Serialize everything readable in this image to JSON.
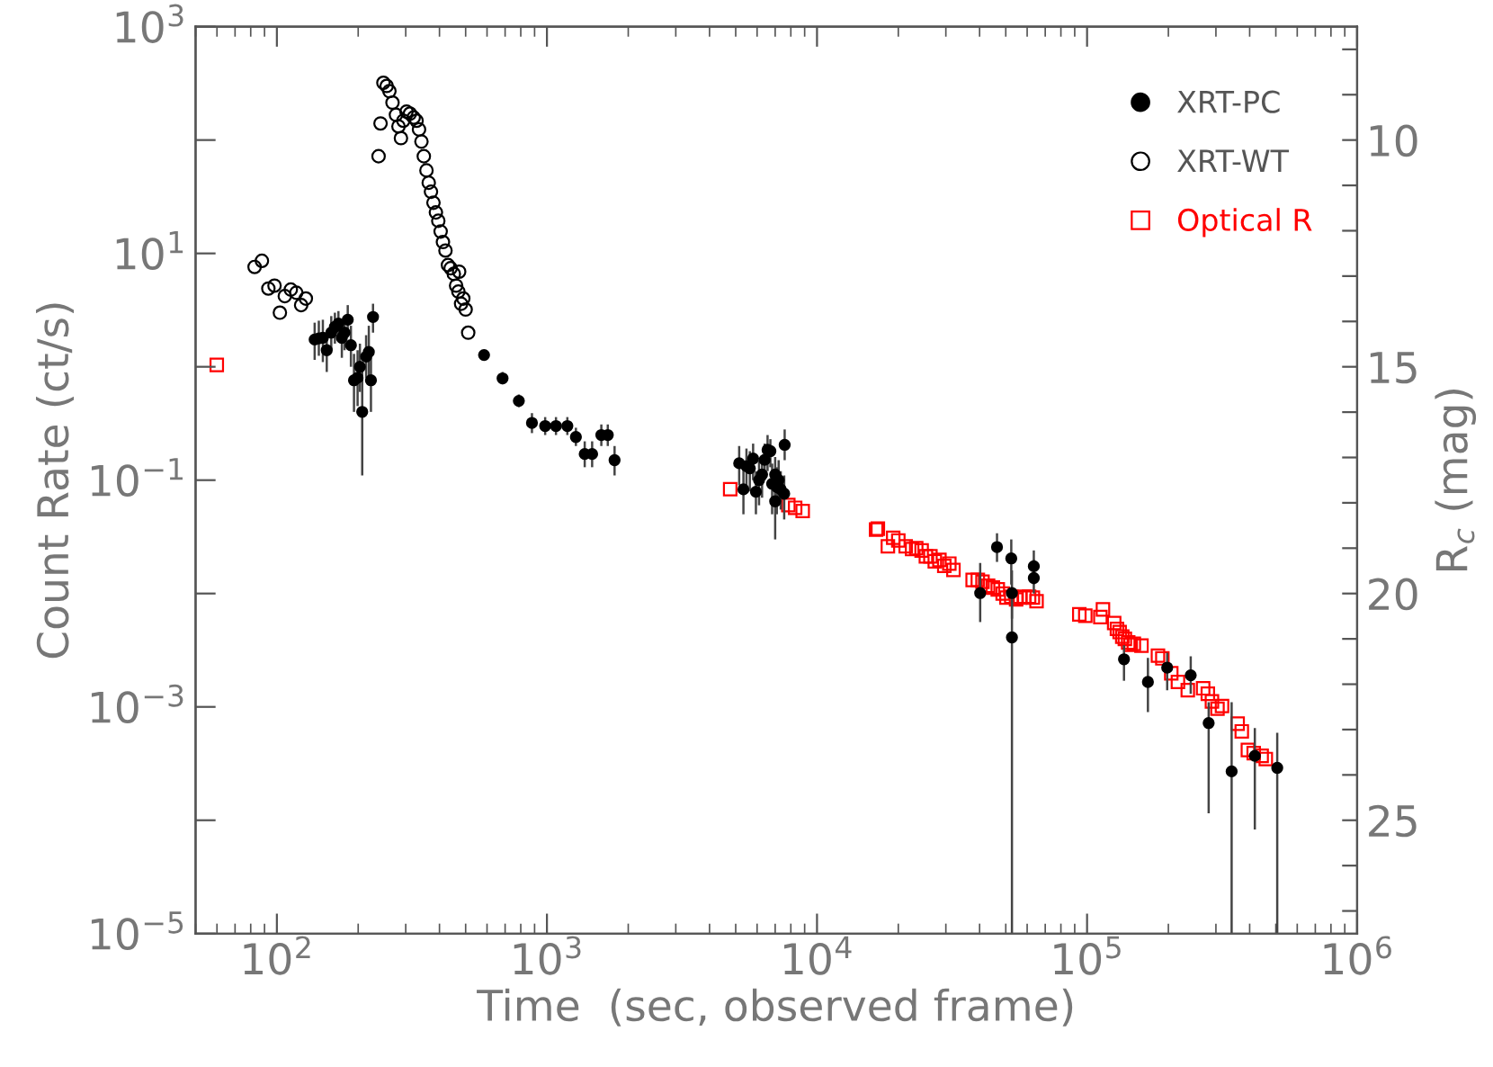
{
  "chart_data": {
    "type": "scatter",
    "xlabel": "Time  (sec, observed frame)",
    "ylabel": "Count Rate (ct/s)",
    "y2label": "R$_{c}$ (mag)",
    "log": "xy",
    "xlim": [
      50,
      1000000
    ],
    "ylim": [
      1e-05,
      1000
    ],
    "y2lim": [
      27.5,
      7.5
    ],
    "xticks": [
      {
        "value": 100,
        "label": "10$^{2}$"
      },
      {
        "value": 1000,
        "label": "10$^{3}$"
      },
      {
        "value": 10000,
        "label": "10$^{4}$"
      },
      {
        "value": 100000,
        "label": "10$^{5}$"
      },
      {
        "value": 1000000,
        "label": "10$^{6}$"
      }
    ],
    "yticks": [
      {
        "value": 1e-05,
        "label": "10$^{−5}$"
      },
      {
        "value": 0.0001,
        "label": null
      },
      {
        "value": 0.001,
        "label": "10$^{−3}$"
      },
      {
        "value": 0.01,
        "label": null
      },
      {
        "value": 0.1,
        "label": "10$^{−1}$"
      },
      {
        "value": 1,
        "label": null
      },
      {
        "value": 10,
        "label": "10$^{1}$"
      },
      {
        "value": 100,
        "label": null
      },
      {
        "value": 1000,
        "label": "10$^{3}$"
      }
    ],
    "y2ticks": [
      {
        "value": 8,
        "label": null
      },
      {
        "value": 9,
        "label": null
      },
      10,
      {
        "value": 11,
        "label": null
      },
      {
        "value": 12,
        "label": null
      },
      {
        "value": 13,
        "label": null
      },
      {
        "value": 14,
        "label": null
      },
      15,
      {
        "value": 16,
        "label": null
      },
      {
        "value": 17,
        "label": null
      },
      {
        "value": 18,
        "label": null
      },
      {
        "value": 19,
        "label": null
      },
      20,
      {
        "value": 21,
        "label": null
      },
      {
        "value": 22,
        "label": null
      },
      {
        "value": 23,
        "label": null
      },
      {
        "value": 24,
        "label": null
      },
      25,
      {
        "value": 26,
        "label": null
      },
      {
        "value": 27,
        "label": null
      }
    ],
    "grid": false,
    "legend": "top right",
    "series": [
      {
        "name": "XRT-PC",
        "color": "#000000",
        "marker": "circle",
        "x": [
          138,
          143,
          148,
          153,
          159,
          164,
          169,
          174,
          178,
          183,
          188,
          193,
          199,
          203,
          207,
          214,
          219,
          223,
          227,
          585,
          685,
          787,
          880,
          985,
          1080,
          1190,
          1280,
          1380,
          1470,
          1590,
          1680,
          1780,
          5150,
          5340,
          5480,
          5640,
          5800,
          5940,
          6100,
          6260,
          6400,
          6560,
          6720,
          6820,
          7000,
          7100,
          7210,
          7000,
          7340,
          7590,
          7560,
          40200,
          46400,
          52400,
          52700,
          52700,
          63500,
          63500,
          137000,
          168000,
          198000,
          242000,
          282000,
          343000,
          418000,
          506000
        ],
        "values": [
          1.74,
          1.78,
          1.8,
          1.4,
          2.0,
          2.25,
          2.4,
          1.8,
          2.0,
          2.6,
          1.55,
          0.76,
          0.8,
          1.0,
          0.4,
          1.23,
          1.35,
          0.76,
          2.75,
          1.27,
          0.79,
          0.5,
          0.32,
          0.3,
          0.3,
          0.3,
          0.24,
          0.17,
          0.17,
          0.25,
          0.25,
          0.15,
          0.141,
          0.083,
          0.133,
          0.127,
          0.155,
          0.079,
          0.1,
          0.112,
          0.151,
          0.185,
          0.18,
          0.093,
          0.112,
          0.087,
          0.1,
          0.065,
          0.083,
          0.205,
          0.076,
          0.0101,
          0.0257,
          0.0204,
          0.0101,
          0.0041,
          0.0174,
          0.0137,
          0.00263,
          0.00166,
          0.00222,
          0.0019,
          0.00072,
          0.00027,
          0.00037,
          0.00029
        ],
        "errors": [
          [
            1.15,
            2.45
          ],
          [
            1.25,
            2.55
          ],
          [
            1.1,
            2.6
          ],
          [
            0.9,
            2.0
          ],
          [
            1.4,
            2.8
          ],
          [
            1.6,
            3.0
          ],
          [
            1.8,
            3.1
          ],
          [
            1.2,
            2.6
          ],
          [
            1.4,
            2.8
          ],
          [
            1.9,
            3.5
          ],
          [
            1.0,
            2.3
          ],
          [
            0.4,
            1.3
          ],
          [
            0.45,
            1.4
          ],
          [
            0.6,
            1.6
          ],
          [
            0.11,
            1.0
          ],
          [
            0.8,
            1.9
          ],
          [
            0.8,
            2.3
          ],
          [
            0.4,
            1.4
          ],
          [
            2.0,
            3.6
          ],
          [
            1.15,
            1.4
          ],
          [
            0.7,
            0.9
          ],
          [
            0.44,
            0.57
          ],
          [
            0.26,
            0.39
          ],
          [
            0.25,
            0.36
          ],
          [
            0.25,
            0.36
          ],
          [
            0.25,
            0.36
          ],
          [
            0.2,
            0.29
          ],
          [
            0.13,
            0.22
          ],
          [
            0.13,
            0.22
          ],
          [
            0.2,
            0.31
          ],
          [
            0.2,
            0.31
          ],
          [
            0.11,
            0.2
          ],
          [
            0.09,
            0.2
          ],
          [
            0.05,
            0.13
          ],
          [
            0.09,
            0.19
          ],
          [
            0.08,
            0.18
          ],
          [
            0.1,
            0.21
          ],
          [
            0.05,
            0.12
          ],
          [
            0.06,
            0.15
          ],
          [
            0.07,
            0.16
          ],
          [
            0.1,
            0.21
          ],
          [
            0.12,
            0.25
          ],
          [
            0.13,
            0.23
          ],
          [
            0.05,
            0.14
          ],
          [
            0.07,
            0.16
          ],
          [
            0.05,
            0.13
          ],
          [
            0.06,
            0.15
          ],
          [
            0.03,
            0.11
          ],
          [
            0.055,
            0.12
          ],
          [
            0.15,
            0.28
          ],
          [
            0.045,
            0.11
          ],
          [
            0.0056,
            0.0186
          ],
          [
            0.019,
            0.034
          ],
          [
            0.012,
            0.03
          ],
          [
            0.006,
            0.016
          ],
          [
            1e-05,
            0.0101
          ],
          [
            0.012,
            0.024
          ],
          [
            0.01,
            0.02
          ],
          [
            0.0017,
            0.0035
          ],
          [
            0.0009,
            0.0027
          ],
          [
            0.0014,
            0.003
          ],
          [
            0.0013,
            0.0028
          ],
          [
            0.000115,
            0.0011
          ],
          [
            1e-05,
            0.0011
          ],
          [
            8.3e-05,
            0.00065
          ],
          [
            1e-05,
            0.00059
          ]
        ]
      },
      {
        "name": "XRT-WT",
        "color": "#000000",
        "marker": "circle",
        "x": [
          82.7,
          88,
          93,
          98,
          102.6,
          107,
          112.6,
          118,
          123,
          128,
          238,
          242,
          248,
          255,
          261,
          268,
          276,
          282,
          288,
          294,
          302,
          311,
          321,
          329,
          336,
          343,
          350,
          358,
          365,
          372,
          380,
          388,
          396,
          404,
          412,
          421,
          430,
          440,
          452,
          461,
          470,
          473,
          481,
          490,
          500,
          511
        ],
        "values": [
          7.6,
          8.6,
          4.9,
          5.2,
          3.0,
          4.2,
          4.8,
          4.5,
          3.5,
          4.0,
          72,
          140,
          320,
          300,
          270,
          214,
          167,
          132,
          104,
          148,
          178,
          171,
          158,
          148,
          124,
          97,
          72,
          54,
          42,
          35,
          28,
          23,
          19.4,
          15.6,
          12.6,
          10.6,
          7.9,
          7.4,
          6.6,
          5.2,
          4.6,
          6.9,
          3.6,
          4.0,
          3.2,
          2.0
        ]
      },
      {
        "name": "Optical R",
        "color": "#ff0000",
        "marker": "square",
        "axis": "y2",
        "x": [
          59.9,
          4770,
          7830,
          8300,
          8850,
          16550,
          16800,
          18300,
          19150,
          20000,
          21300,
          22500,
          23300,
          24400,
          25300,
          26300,
          27300,
          28400,
          29600,
          30900,
          32000,
          37700,
          39400,
          41000,
          43000,
          44800,
          46700,
          48700,
          50300,
          52400,
          54600,
          56500,
          58600,
          61000,
          63000,
          65000,
          93600,
          98500,
          112000,
          114500,
          126000,
          129000,
          132000,
          135000,
          138000,
          142000,
          145000,
          149000,
          159000,
          183000,
          190000,
          205000,
          217000,
          236000,
          269000,
          280000,
          290000,
          304000,
          316000,
          361000,
          374000,
          394000,
          414000,
          443000,
          459000
        ],
        "values": [
          14.96,
          17.7,
          18.05,
          18.11,
          18.18,
          18.59,
          18.57,
          18.96,
          18.77,
          18.83,
          18.96,
          19.02,
          19.0,
          19.05,
          19.18,
          19.18,
          19.29,
          19.26,
          19.39,
          19.34,
          19.48,
          19.7,
          19.7,
          19.74,
          19.83,
          19.87,
          19.91,
          20.0,
          20.09,
          20.07,
          20.13,
          20.09,
          20.07,
          20.07,
          20.09,
          20.17,
          20.46,
          20.49,
          20.52,
          20.35,
          20.65,
          20.78,
          20.85,
          20.95,
          21.0,
          21.08,
          21.13,
          21.11,
          21.15,
          21.37,
          21.43,
          21.76,
          21.95,
          22.13,
          22.09,
          22.21,
          22.38,
          22.54,
          22.48,
          22.87,
          23.04,
          23.45,
          23.52,
          23.58,
          23.65
        ]
      }
    ]
  }
}
